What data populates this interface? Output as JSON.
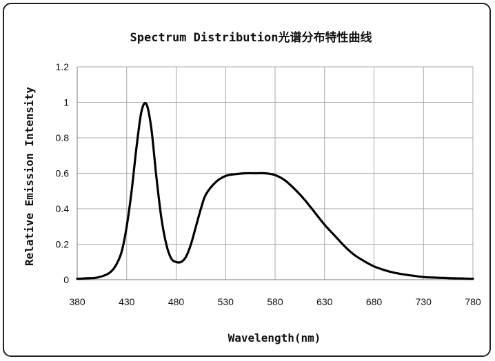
{
  "chart_data": {
    "type": "line",
    "title": "Spectrum Distribution光谱分布特性曲线",
    "xlabel": "Wavelength(nm)",
    "ylabel": "Relative Emission Intensity",
    "xlim": [
      380,
      780
    ],
    "ylim": [
      0,
      1.2
    ],
    "x_ticks": [
      380,
      430,
      480,
      530,
      580,
      630,
      680,
      730,
      780
    ],
    "x_tick_labels": [
      "380",
      "430",
      "480",
      "530",
      "580",
      "630",
      "680",
      "730",
      "780"
    ],
    "y_ticks": [
      0,
      0.2,
      0.4,
      0.6,
      0.8,
      1,
      1.2
    ],
    "y_tick_labels": [
      "0",
      "0.2",
      "0.4",
      "0.6",
      "0.8",
      "1",
      "1.2"
    ],
    "grid": true,
    "line_color": "#000000",
    "series": [
      {
        "x": [
          380,
          390,
          400,
          410,
          415,
          420,
          425,
          430,
          435,
          440,
          445,
          450,
          455,
          460,
          465,
          470,
          475,
          480,
          485,
          490,
          495,
          500,
          505,
          510,
          520,
          530,
          540,
          550,
          560,
          570,
          580,
          590,
          600,
          610,
          620,
          630,
          640,
          650,
          660,
          670,
          680,
          690,
          700,
          710,
          720,
          730,
          740,
          750,
          760,
          770,
          780
        ],
        "y": [
          0.005,
          0.008,
          0.012,
          0.03,
          0.05,
          0.09,
          0.16,
          0.3,
          0.5,
          0.75,
          0.95,
          0.99,
          0.85,
          0.58,
          0.35,
          0.2,
          0.12,
          0.1,
          0.1,
          0.13,
          0.2,
          0.3,
          0.4,
          0.48,
          0.55,
          0.585,
          0.595,
          0.6,
          0.6,
          0.6,
          0.59,
          0.56,
          0.51,
          0.45,
          0.38,
          0.31,
          0.25,
          0.19,
          0.14,
          0.105,
          0.075,
          0.055,
          0.04,
          0.03,
          0.022,
          0.015,
          0.012,
          0.01,
          0.008,
          0.007,
          0.005
        ]
      }
    ]
  }
}
